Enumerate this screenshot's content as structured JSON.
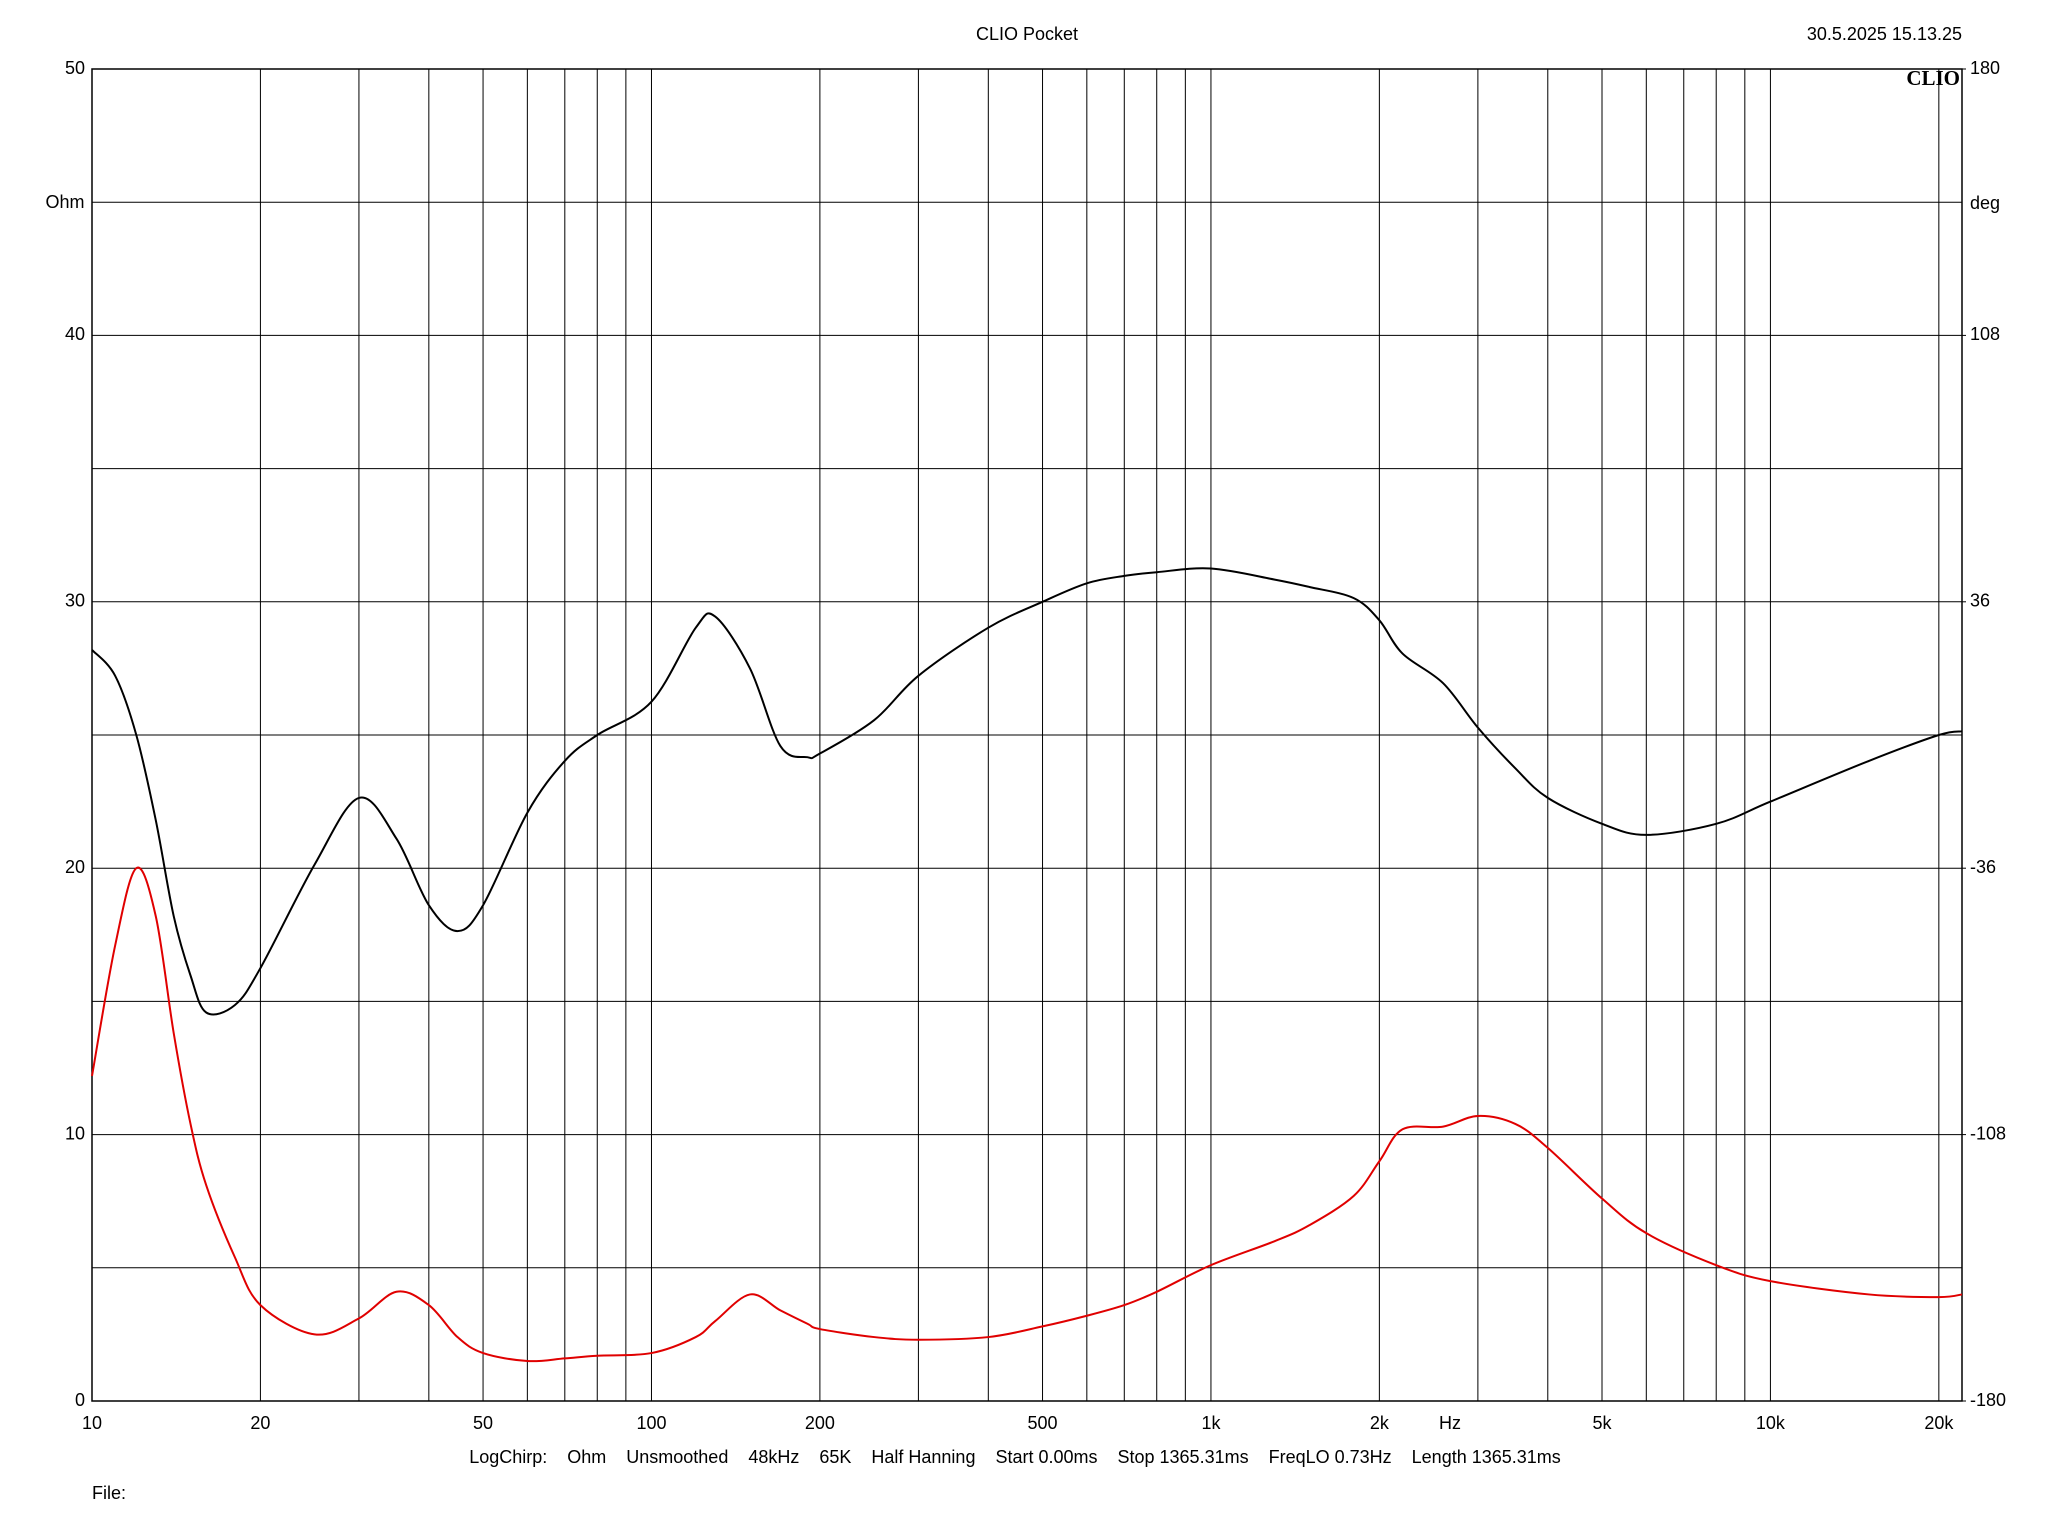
{
  "chart_data": {
    "type": "line",
    "title": "CLIO Pocket",
    "timestamp": "30.5.2025 15.13.25",
    "logo": "CLIO",
    "ylabel": "Ohm",
    "y2label": "deg",
    "xlabel": "Hz",
    "footer": [
      "LogChirp:",
      "Ohm",
      "Unsmoothed",
      "48kHz",
      "65K",
      "Half Hanning",
      "Start 0.00ms",
      "Stop 1365.31ms",
      "FreqLO 0.73Hz",
      "Length 1365.31ms"
    ],
    "file_label": "File:",
    "xscale": "log",
    "grid": true,
    "xlim": [
      10,
      22000
    ],
    "xticks": [
      10,
      20,
      50,
      100,
      200,
      500,
      {
        "value": 1000,
        "label": "1k"
      },
      {
        "value": 2000,
        "label": "2k"
      },
      {
        "value": 5000,
        "label": "5k"
      },
      {
        "value": 10000,
        "label": "10k"
      },
      {
        "value": 20000,
        "label": "20k"
      }
    ],
    "xminor": [
      30,
      40,
      60,
      70,
      80,
      90,
      300,
      400,
      600,
      700,
      800,
      900,
      3000,
      4000,
      6000,
      7000,
      8000,
      9000
    ],
    "ylim": [
      0,
      50
    ],
    "yticks": [
      0,
      10,
      20,
      30,
      40,
      50
    ],
    "yminor": [
      5,
      15,
      25,
      35,
      45
    ],
    "y2lim": [
      -180,
      180
    ],
    "y2ticks": [
      -180,
      -108,
      -36,
      36,
      108,
      180
    ],
    "x": [
      10,
      11,
      12,
      13,
      14,
      15,
      16,
      18,
      20,
      25,
      30,
      35,
      40,
      45,
      50,
      60,
      70,
      80,
      100,
      120,
      130,
      150,
      170,
      190,
      200,
      250,
      300,
      400,
      500,
      600,
      700,
      800,
      1000,
      1300,
      1500,
      1800,
      2000,
      2200,
      2600,
      3000,
      3500,
      4000,
      5000,
      6000,
      8000,
      10000,
      15000,
      20000,
      22000
    ],
    "series": [
      {
        "color": "#e00000",
        "values": [
          12.2,
          17.1,
          20.0,
          18.2,
          13.8,
          10.4,
          8.1,
          5.4,
          3.6,
          2.5,
          3.1,
          4.1,
          3.6,
          2.4,
          1.8,
          1.5,
          1.6,
          1.7,
          1.8,
          2.4,
          3.0,
          4.0,
          3.4,
          2.9,
          2.7,
          2.4,
          2.3,
          2.4,
          2.8,
          3.2,
          3.6,
          4.1,
          5.1,
          6.0,
          6.6,
          7.7,
          9.0,
          10.2,
          10.3,
          10.7,
          10.4,
          9.5,
          7.6,
          6.3,
          5.1,
          4.5,
          4.0,
          3.9,
          4.0
        ]
      },
      {
        "color": "#000000",
        "axis": "y2",
        "values": [
          23,
          16,
          0,
          -23,
          -49,
          -65,
          -75,
          -73,
          -63,
          -35,
          -17,
          -28,
          -46,
          -53,
          -46,
          -21,
          -7,
          0,
          9,
          29,
          32,
          18,
          -3,
          -6,
          -5,
          4,
          16,
          29,
          36,
          41,
          43,
          44,
          45,
          42,
          40,
          37,
          31,
          22,
          14,
          2,
          -9,
          -17,
          -24,
          -27,
          -24,
          -18,
          -7,
          0,
          1
        ]
      }
    ]
  }
}
